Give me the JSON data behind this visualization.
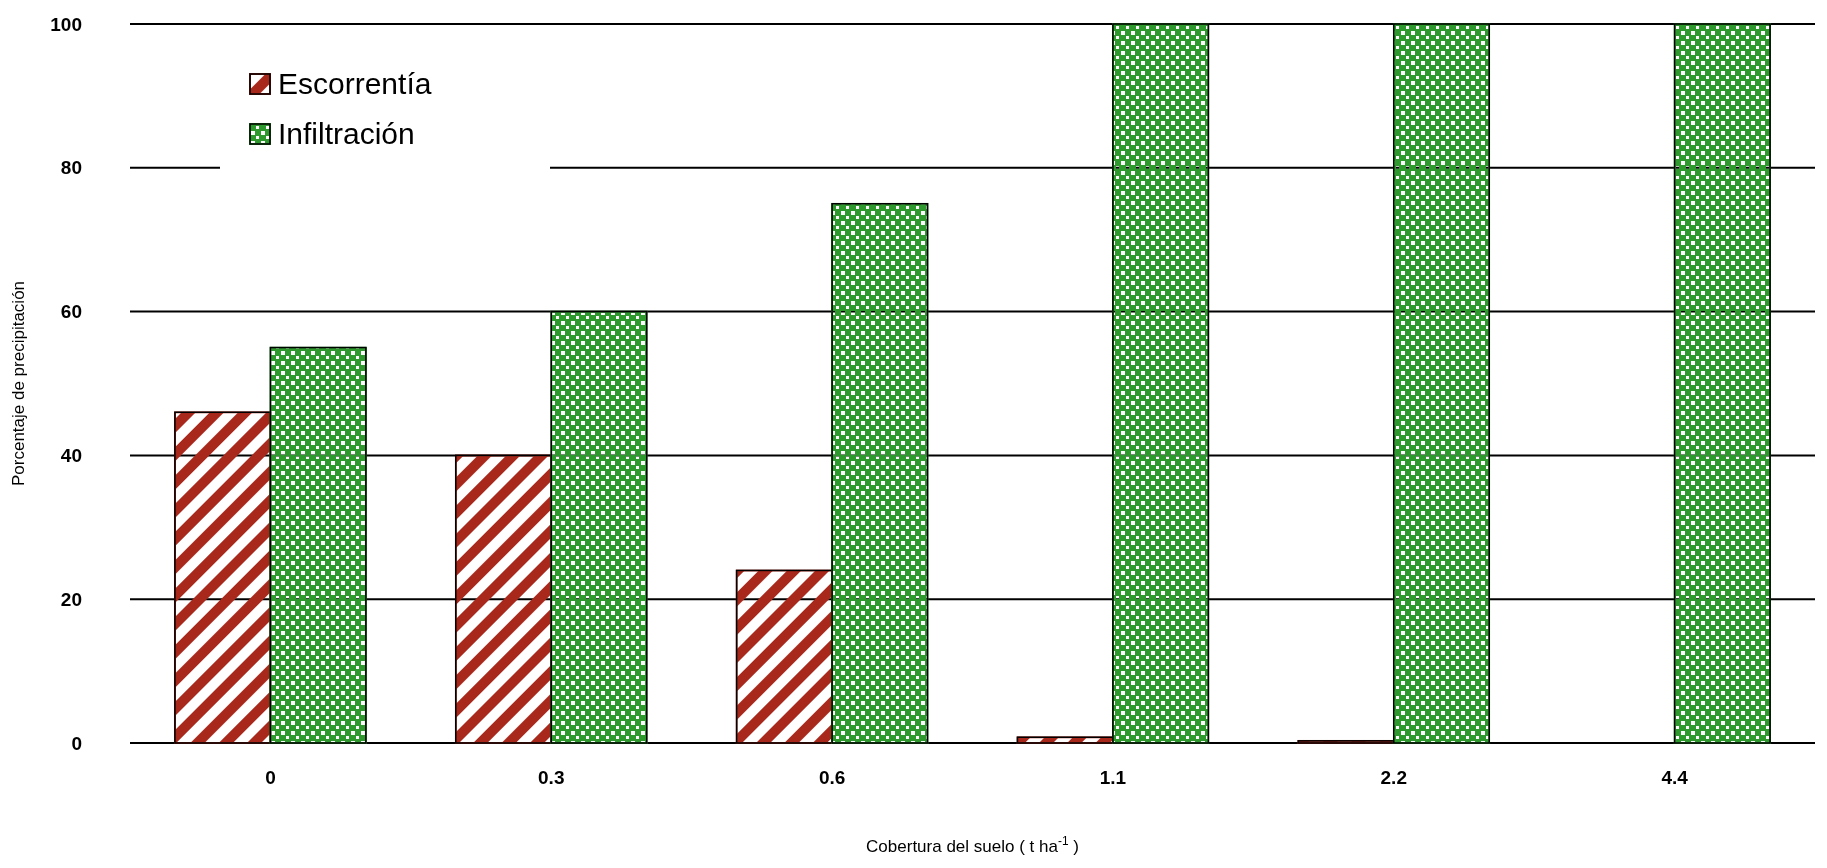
{
  "chart_data": {
    "type": "bar",
    "xlabel": "Cobertura del suelo ( t ha$^{-1}$ )",
    "ylabel": "Porcentaje de precipitación",
    "categories": [
      "0",
      "0.3",
      "0.6",
      "1.1",
      "2.2",
      "4.4"
    ],
    "series": [
      {
        "name": "Escorrentía",
        "color": "#a8281c",
        "values": [
          46,
          40,
          24,
          0.8,
          0.3,
          0
        ]
      },
      {
        "name": "Infiltración",
        "color": "#2e9a2e",
        "values": [
          55,
          60,
          75,
          100,
          100,
          100
        ]
      }
    ],
    "ylim": [
      0,
      100
    ],
    "yticks": [
      0,
      20,
      40,
      60,
      80,
      100
    ],
    "grid": "y",
    "legend": "top left"
  }
}
